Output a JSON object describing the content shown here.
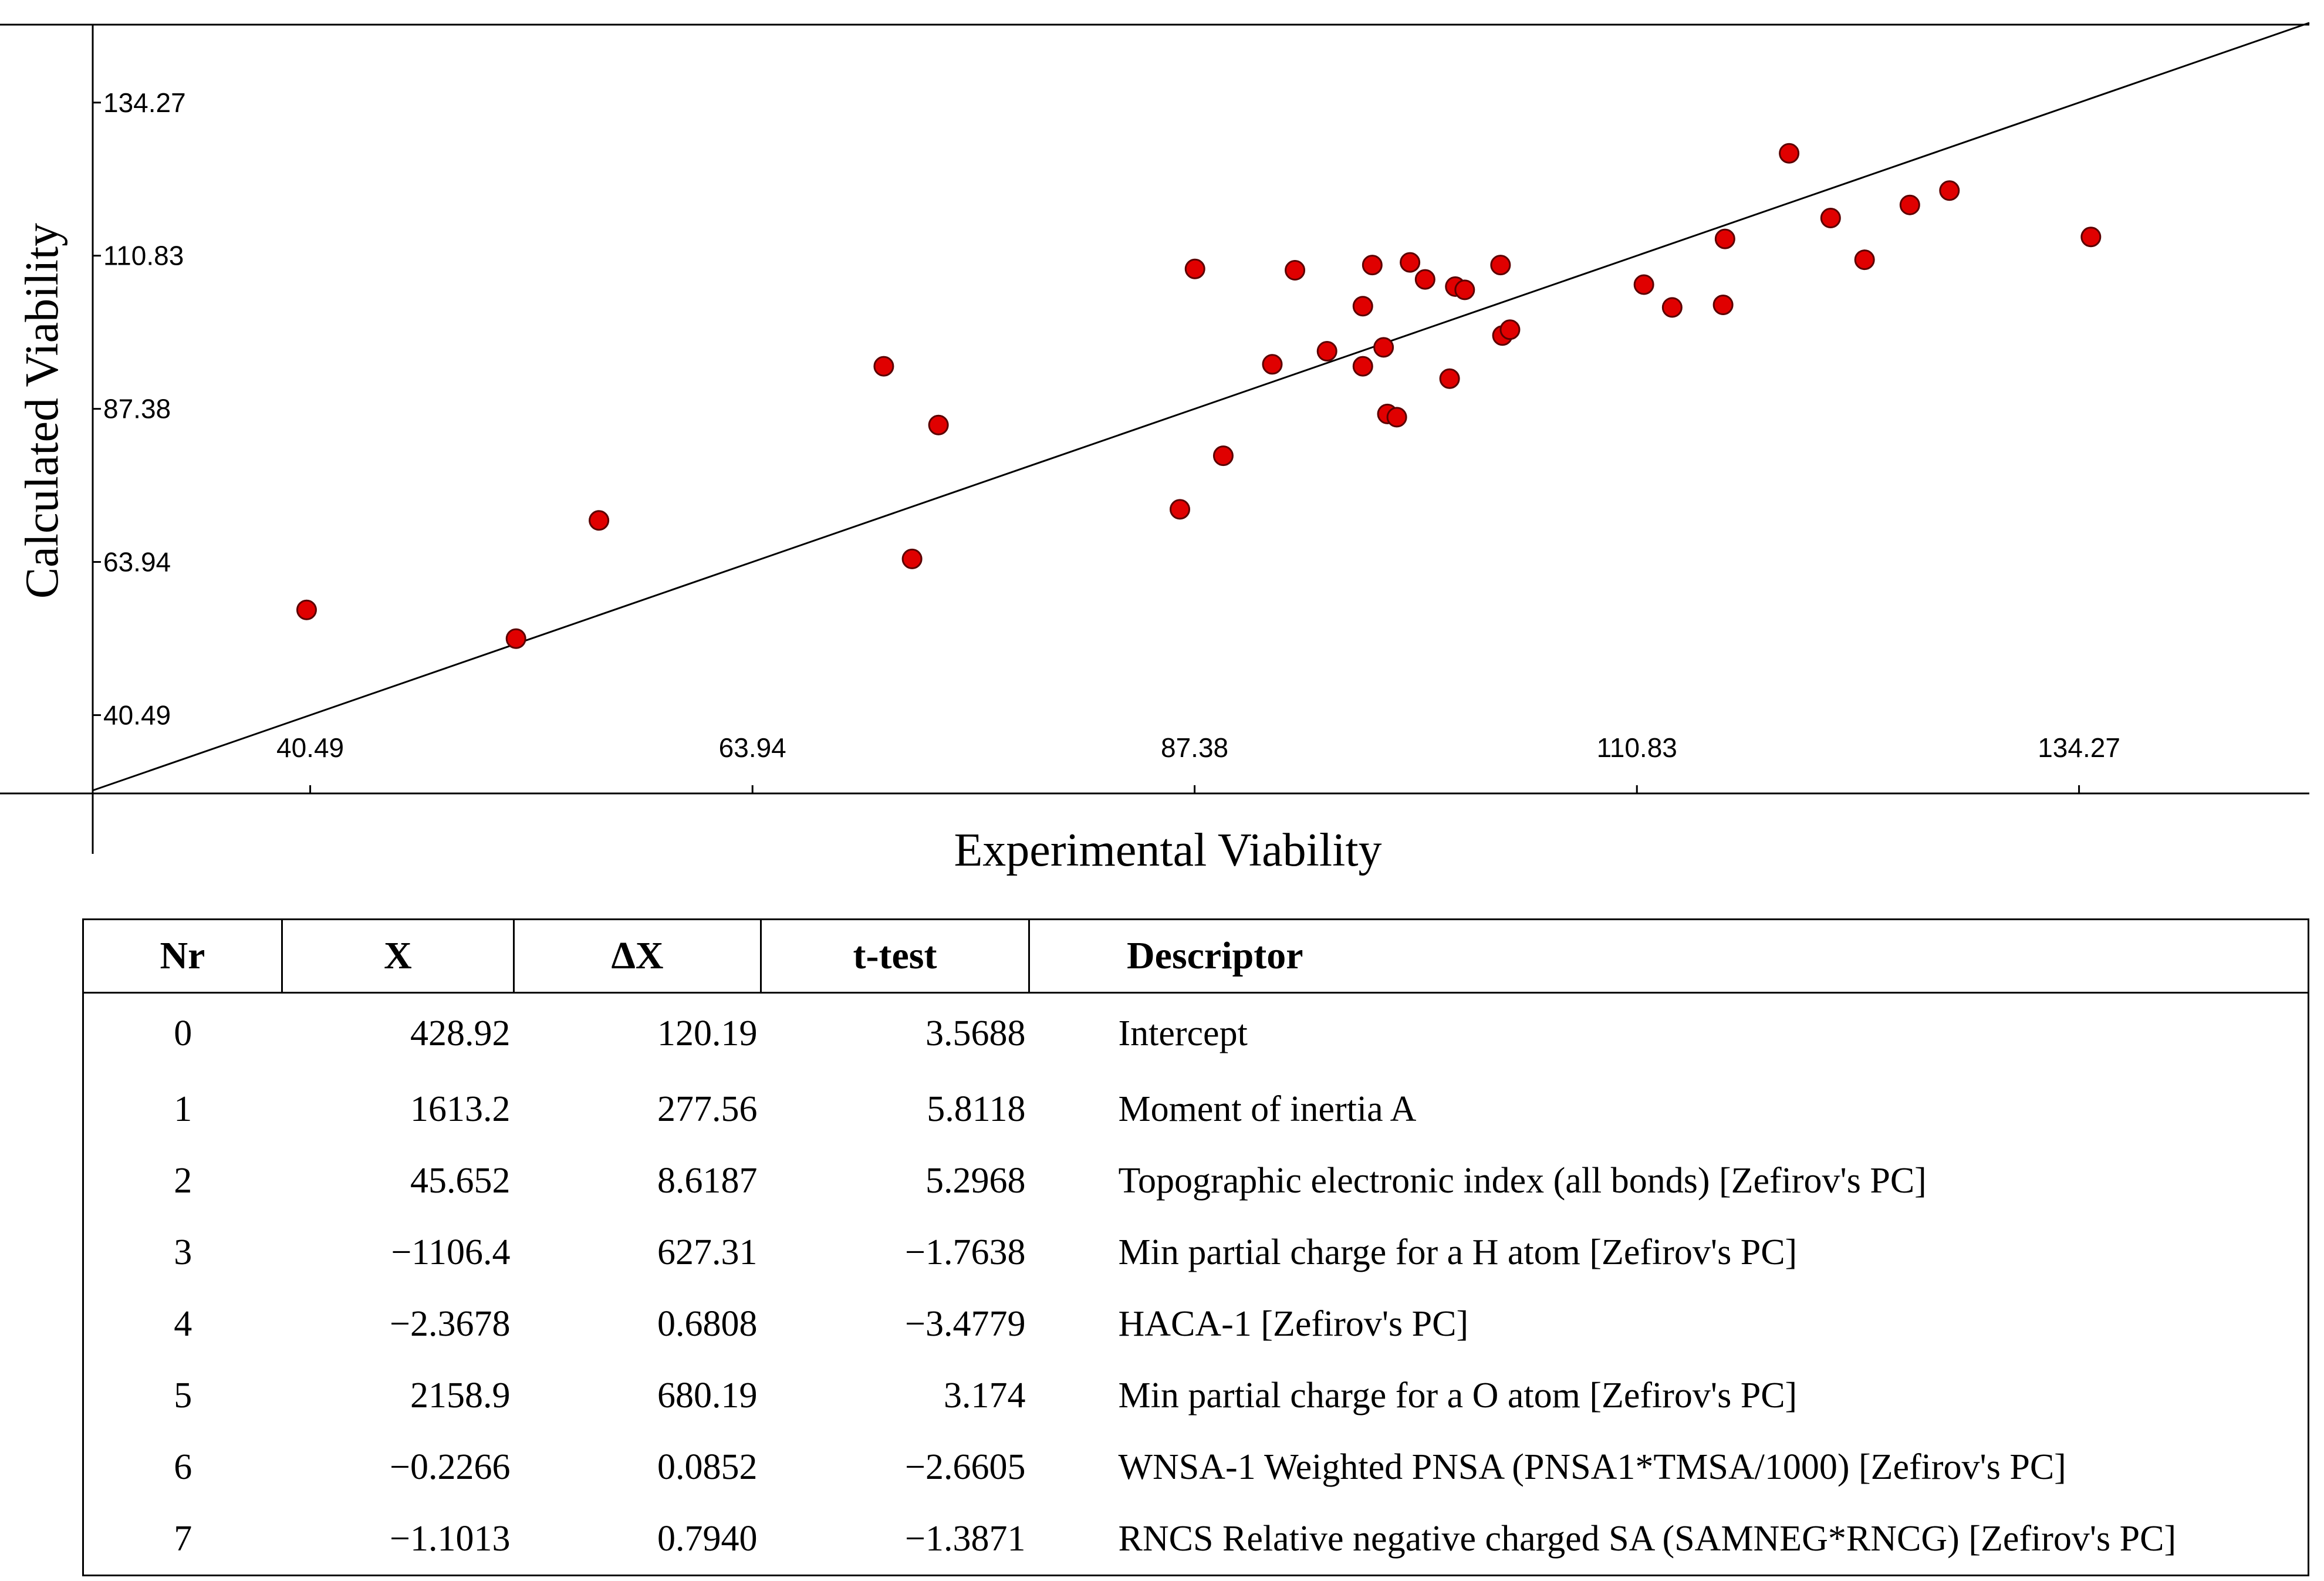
{
  "chart_data": {
    "type": "scatter",
    "title": "",
    "xlabel": "Experimental Viability",
    "ylabel": "Calculated Viability",
    "xlim": [
      28.96,
      146.48
    ],
    "ylim": [
      28.5,
      146.2
    ],
    "xticks": [
      "40.49",
      "63.94",
      "87.38",
      "110.83",
      "134.27"
    ],
    "yticks": [
      "40.49",
      "63.94",
      "87.38",
      "110.83",
      "134.27"
    ],
    "grid": false,
    "marker_color": "#e00000",
    "fit_line": {
      "slope": 1,
      "intercept": 0
    },
    "points": [
      {
        "x": 40.3,
        "y": 56.6
      },
      {
        "x": 51.4,
        "y": 52.2
      },
      {
        "x": 55.8,
        "y": 70.3
      },
      {
        "x": 70.9,
        "y": 93.9
      },
      {
        "x": 72.4,
        "y": 64.4
      },
      {
        "x": 73.8,
        "y": 84.9
      },
      {
        "x": 86.6,
        "y": 72.0
      },
      {
        "x": 87.4,
        "y": 108.8
      },
      {
        "x": 88.9,
        "y": 80.2
      },
      {
        "x": 91.5,
        "y": 94.2
      },
      {
        "x": 92.7,
        "y": 108.6
      },
      {
        "x": 94.4,
        "y": 96.2
      },
      {
        "x": 96.3,
        "y": 93.9
      },
      {
        "x": 96.3,
        "y": 103.1
      },
      {
        "x": 96.8,
        "y": 109.4
      },
      {
        "x": 97.4,
        "y": 96.8
      },
      {
        "x": 97.6,
        "y": 86.6
      },
      {
        "x": 98.1,
        "y": 86.1
      },
      {
        "x": 98.8,
        "y": 109.8
      },
      {
        "x": 99.6,
        "y": 107.2
      },
      {
        "x": 100.9,
        "y": 92.0
      },
      {
        "x": 101.2,
        "y": 106.1
      },
      {
        "x": 101.7,
        "y": 105.6
      },
      {
        "x": 103.6,
        "y": 109.4
      },
      {
        "x": 103.7,
        "y": 98.6
      },
      {
        "x": 104.1,
        "y": 99.5
      },
      {
        "x": 111.2,
        "y": 106.4
      },
      {
        "x": 112.7,
        "y": 102.9
      },
      {
        "x": 115.4,
        "y": 103.3
      },
      {
        "x": 115.5,
        "y": 113.4
      },
      {
        "x": 118.9,
        "y": 126.5
      },
      {
        "x": 121.1,
        "y": 116.6
      },
      {
        "x": 122.9,
        "y": 110.2
      },
      {
        "x": 125.3,
        "y": 118.6
      },
      {
        "x": 127.4,
        "y": 120.8
      },
      {
        "x": 134.9,
        "y": 113.7
      }
    ]
  },
  "table": {
    "headers": {
      "nr": "Nr",
      "x": "X",
      "dx": "ΔX",
      "t": "t-test",
      "desc": "Descriptor"
    },
    "rows": [
      {
        "nr": "0",
        "x": "428.92",
        "dx": "120.19",
        "t": "3.5688",
        "desc": "Intercept"
      },
      {
        "nr": "1",
        "x": "1613.2",
        "dx": "277.56",
        "t": "5.8118",
        "desc": "Moment of inertia A"
      },
      {
        "nr": "2",
        "x": "45.652",
        "dx": "8.6187",
        "t": "5.2968",
        "desc": "Topographic electronic index (all bonds) [Zefirov's PC]"
      },
      {
        "nr": "3",
        "x": "−1106.4",
        "dx": "627.31",
        "t": "−1.7638",
        "desc": "Min partial charge for a H  atom [Zefirov's PC]"
      },
      {
        "nr": "4",
        "x": "−2.3678",
        "dx": "0.6808",
        "t": "−3.4779",
        "desc": "HACA-1 [Zefirov's PC]"
      },
      {
        "nr": "5",
        "x": "2158.9",
        "dx": "680.19",
        "t": "3.174",
        "desc": "Min partial charge for a O  atom [Zefirov's PC]"
      },
      {
        "nr": "6",
        "x": "−0.2266",
        "dx": "0.0852",
        "t": "−2.6605",
        "desc": "WNSA-1 Weighted PNSA (PNSA1*TMSA/1000) [Zefirov's PC]"
      },
      {
        "nr": "7",
        "x": "−1.1013",
        "dx": "0.7940",
        "t": "−1.3871",
        "desc": "RNCS Relative negative charged SA (SAMNEG*RNCG) [Zefirov's PC]"
      }
    ]
  }
}
